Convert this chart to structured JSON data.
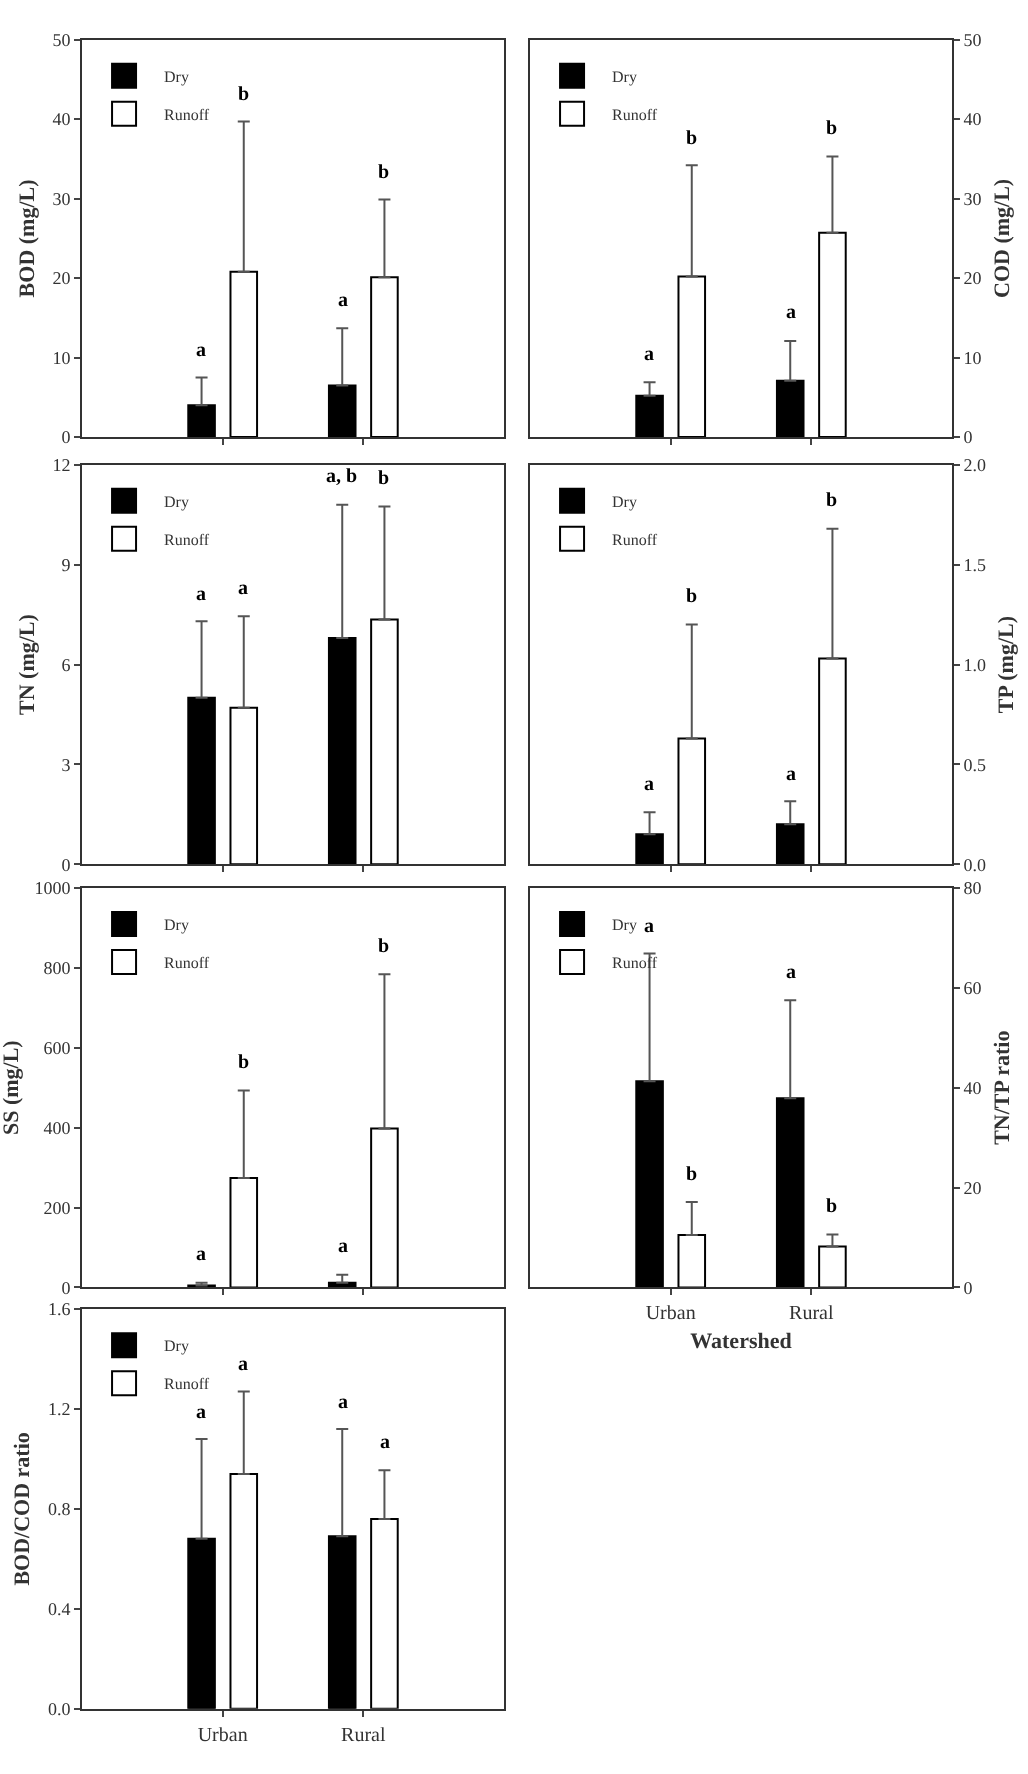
{
  "chart_data": [
    {
      "type": "bar",
      "ylabel": "BOD (mg/L)",
      "categories": [
        null,
        null
      ],
      "ylim": [
        0,
        50
      ],
      "yticks": [
        0,
        10,
        20,
        30,
        40,
        50
      ],
      "grid": false,
      "legend": "top left",
      "series": [
        {
          "name": "Dry",
          "color": "#000000",
          "values": [
            4.0,
            6.5
          ],
          "errors": [
            [
              4.0,
              7.5
            ],
            [
              6.5,
              13.7
            ]
          ]
        },
        {
          "name": "Runoff",
          "color": "#ffffff",
          "values": [
            20.8,
            20.1
          ],
          "errors": [
            [
              20.8,
              39.7
            ],
            [
              20.1,
              29.9
            ]
          ]
        }
      ],
      "annotations": [
        "a",
        "b",
        "a",
        "b"
      ]
    },
    {
      "type": "bar",
      "ylabel": "COD (mg/L)",
      "categories": [
        null,
        null
      ],
      "ylim": [
        0,
        50
      ],
      "yticks": [
        0,
        10,
        20,
        30,
        40,
        50
      ],
      "grid": false,
      "legend": "top left",
      "series": [
        {
          "name": "Dry",
          "color": "#000000",
          "values": [
            5.2,
            7.1
          ],
          "errors": [
            [
              5.2,
              6.9
            ],
            [
              7.1,
              12.1
            ]
          ]
        },
        {
          "name": "Runoff",
          "color": "#ffffff",
          "values": [
            20.2,
            25.7
          ],
          "errors": [
            [
              20.2,
              34.2
            ],
            [
              25.7,
              35.3
            ]
          ]
        }
      ],
      "annotations": [
        "a",
        "b",
        "a",
        "b"
      ]
    },
    {
      "type": "bar",
      "ylabel": "TN (mg/L)",
      "categories": [
        null,
        null
      ],
      "ylim": [
        0,
        12
      ],
      "yticks": [
        0,
        3,
        6,
        9,
        12
      ],
      "grid": false,
      "legend": "top left",
      "series": [
        {
          "name": "Dry",
          "color": "#000000",
          "values": [
            5.0,
            6.8
          ],
          "errors": [
            [
              5.0,
              7.3
            ],
            [
              6.8,
              10.8
            ]
          ]
        },
        {
          "name": "Runoff",
          "color": "#ffffff",
          "values": [
            4.7,
            7.35
          ],
          "errors": [
            [
              4.7,
              7.45
            ],
            [
              7.35,
              10.75
            ]
          ]
        }
      ],
      "annotations": [
        "a",
        "a",
        "a, b",
        "b"
      ]
    },
    {
      "type": "bar",
      "ylabel": "TP (mg/L)",
      "categories": [
        null,
        null
      ],
      "ylim": [
        0,
        2
      ],
      "yticks": [
        {
          "value": 0,
          "label": "0.0"
        },
        0.5,
        {
          "value": 1,
          "label": "1.0"
        },
        1.5,
        {
          "value": 2,
          "label": "2.0"
        }
      ],
      "grid": false,
      "legend": "top left",
      "series": [
        {
          "name": "Dry",
          "color": "#000000",
          "values": [
            0.15,
            0.2
          ],
          "errors": [
            [
              0.15,
              0.26
            ],
            [
              0.2,
              0.315
            ]
          ]
        },
        {
          "name": "Runoff",
          "color": "#ffffff",
          "values": [
            0.63,
            1.03
          ],
          "errors": [
            [
              0.63,
              1.2
            ],
            [
              1.03,
              1.68
            ]
          ]
        }
      ],
      "annotations": [
        "a",
        "b",
        "a",
        "b"
      ]
    },
    {
      "type": "bar",
      "ylabel": "SS (mg/L)",
      "categories": [
        null,
        null
      ],
      "ylim": [
        0,
        1000
      ],
      "yticks": [
        0,
        200,
        400,
        600,
        800,
        1000
      ],
      "grid": false,
      "legend": "top left",
      "series": [
        {
          "name": "Dry",
          "color": "#000000",
          "values": [
            5,
            12
          ],
          "errors": [
            [
              5,
              12
            ],
            [
              12,
              32
            ]
          ]
        },
        {
          "name": "Runoff",
          "color": "#ffffff",
          "values": [
            274,
            398
          ],
          "errors": [
            [
              274,
              493
            ],
            [
              398,
              784
            ]
          ]
        }
      ],
      "annotations": [
        "a",
        "b",
        "a",
        "b"
      ]
    },
    {
      "type": "bar",
      "ylabel": "TN/TP ratio",
      "xlabel": "Watershed",
      "categories": [
        "Urban",
        "Rural"
      ],
      "ylim": [
        0,
        80
      ],
      "yticks": [
        0,
        20,
        40,
        60,
        80
      ],
      "grid": false,
      "legend": "top left",
      "series": [
        {
          "name": "Dry",
          "color": "#000000",
          "values": [
            41.3,
            37.9
          ],
          "errors": [
            [
              41.3,
              66.9
            ],
            [
              37.9,
              57.5
            ]
          ]
        },
        {
          "name": "Runoff",
          "color": "#ffffff",
          "values": [
            10.5,
            8.2
          ],
          "errors": [
            [
              10.5,
              17.1
            ],
            [
              8.2,
              10.6
            ]
          ]
        }
      ],
      "annotations": [
        "a",
        "b",
        "a",
        "b"
      ]
    },
    {
      "type": "bar",
      "ylabel": "BOD/COD ratio",
      "categories": [
        "Urban",
        "Rural"
      ],
      "ylim": [
        0,
        1.6
      ],
      "yticks": [
        {
          "value": 0,
          "label": "0.0"
        },
        0.4,
        0.8,
        1.2,
        1.6
      ],
      "grid": false,
      "legend": "top left",
      "series": [
        {
          "name": "Dry",
          "color": "#000000",
          "values": [
            0.68,
            0.69
          ],
          "errors": [
            [
              0.68,
              1.08
            ],
            [
              0.69,
              1.12
            ]
          ]
        },
        {
          "name": "Runoff",
          "color": "#ffffff",
          "values": [
            0.94,
            0.76
          ],
          "errors": [
            [
              0.94,
              1.27
            ],
            [
              0.76,
              0.955
            ]
          ]
        }
      ],
      "annotations": [
        "a",
        "a",
        "a",
        "a"
      ]
    }
  ]
}
